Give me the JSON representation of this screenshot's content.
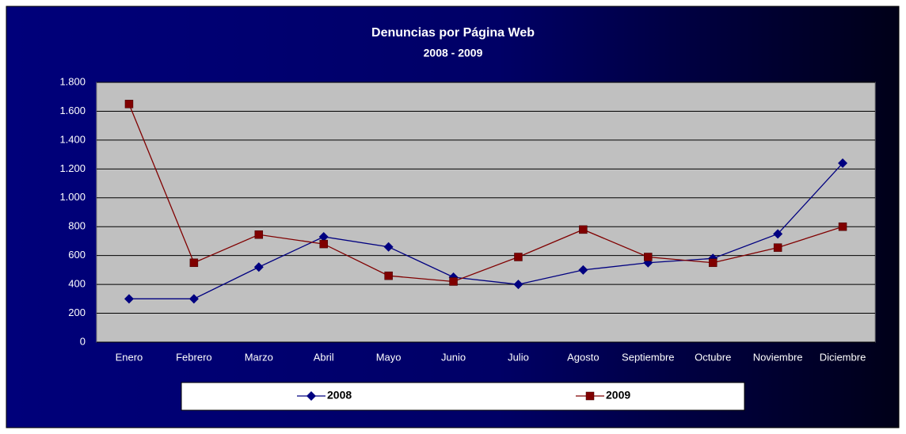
{
  "chart_data": {
    "type": "line",
    "title": "Denuncias por Página Web",
    "subtitle": "2008 - 2009",
    "categories": [
      "Enero",
      "Febrero",
      "Marzo",
      "Abril",
      "Mayo",
      "Junio",
      "Julio",
      "Agosto",
      "Septiembre",
      "Octubre",
      "Noviembre",
      "Diciembre"
    ],
    "series": [
      {
        "name": "2008",
        "color": "#000080",
        "marker": "diamond",
        "values": [
          300,
          300,
          520,
          730,
          660,
          450,
          400,
          500,
          550,
          580,
          750,
          1240
        ]
      },
      {
        "name": "2009",
        "color": "#800000",
        "marker": "square",
        "values": [
          1650,
          550,
          745,
          680,
          460,
          420,
          590,
          780,
          590,
          550,
          655,
          800
        ]
      }
    ],
    "ylim": [
      0,
      1800
    ],
    "yticks": [
      0,
      200,
      400,
      600,
      800,
      {
        "value": 1000,
        "label": "1.000"
      },
      {
        "value": 1200,
        "label": "1.200"
      },
      {
        "value": 1400,
        "label": "1.400"
      },
      {
        "value": 1600,
        "label": "1.600"
      },
      {
        "value": 1800,
        "label": "1.800"
      }
    ],
    "grid": true,
    "legend": "bottom"
  }
}
